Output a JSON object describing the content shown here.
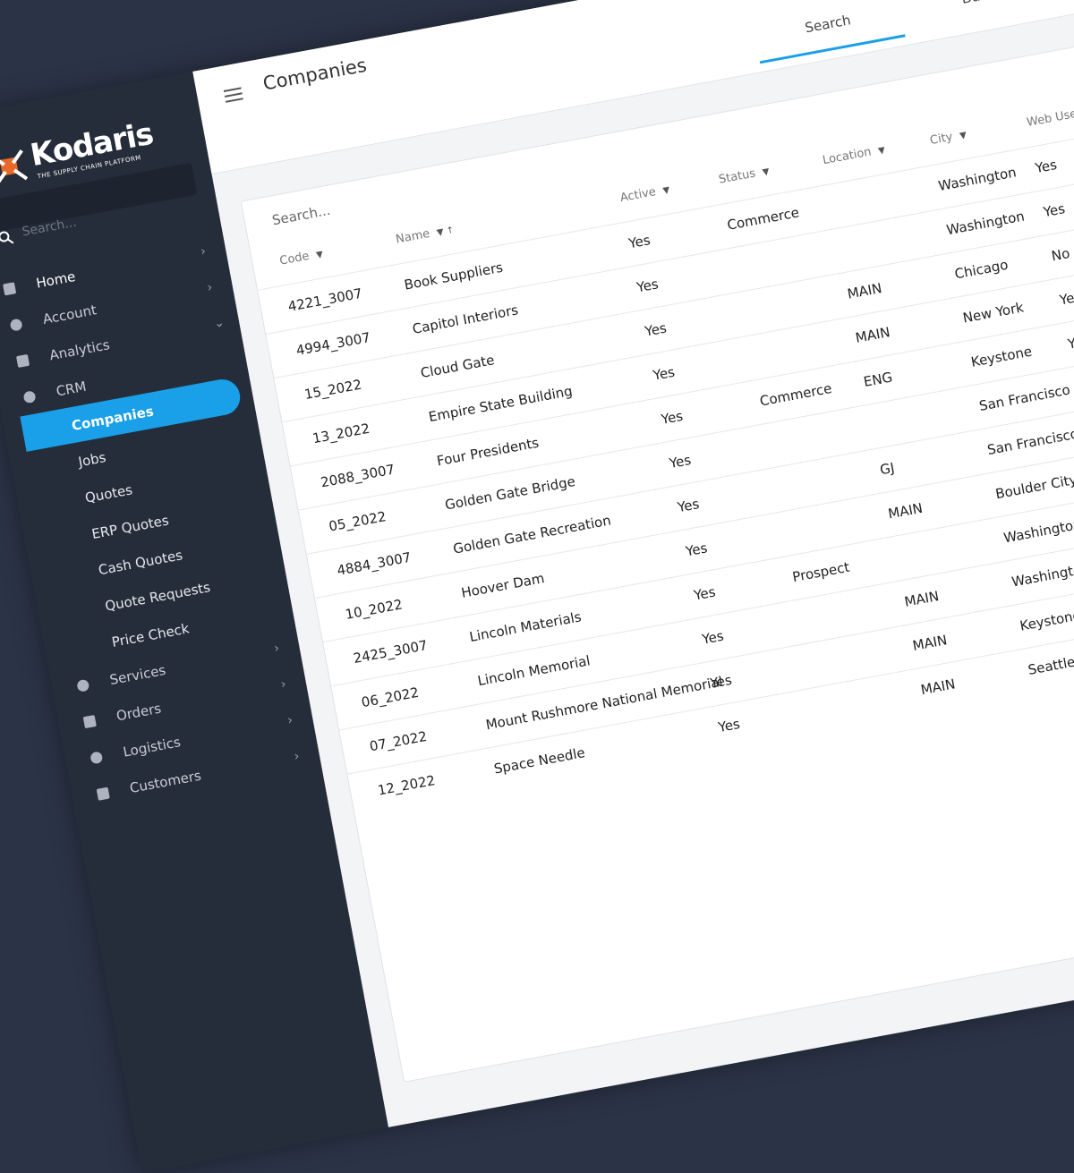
{
  "sidebar": {
    "logo": "Kodaris",
    "tagline": "THE SUPPLY CHAIN PLATFORM",
    "search": "Search...",
    "nav": [
      "Home",
      "Account",
      "Analytics",
      "CRM",
      "Companies",
      "Jobs",
      "Quotes",
      "ERP Quotes",
      "Cash Quotes",
      "Quote Requests",
      "Price Check",
      "Services",
      "Orders",
      "Logistics",
      "Customers"
    ]
  },
  "header": {
    "title": "Companies",
    "tabs": [
      "Search",
      "Data"
    ]
  },
  "table": {
    "search": "Search...",
    "columns": [
      "Code",
      "Name",
      "Active",
      "Status",
      "Location",
      "City",
      "Web User"
    ],
    "rows": [
      [
        "4221_3007",
        "Book Suppliers",
        "Yes",
        "Commerce",
        null,
        "Washington",
        "Yes"
      ],
      [
        "4994_3007",
        "Capitol Interiors",
        "Yes",
        null,
        null,
        "Washington",
        "Yes"
      ],
      [
        "15_2022",
        "Cloud Gate",
        "Yes",
        null,
        "MAIN",
        "Chicago",
        "No"
      ],
      [
        "13_2022",
        "Empire State Building",
        "Yes",
        null,
        "MAIN",
        "New York",
        "Yes"
      ],
      [
        "2088_3007",
        "Four Presidents",
        "Yes",
        "Commerce",
        "ENG",
        "Keystone",
        "Yes"
      ],
      [
        "05_2022",
        "Golden Gate Bridge",
        "Yes",
        null,
        null,
        "San Francisco",
        null
      ],
      [
        "4884_3007",
        "Golden Gate Recreation",
        "Yes",
        null,
        "GJ",
        "San Francisco",
        null
      ],
      [
        "10_2022",
        "Hoover Dam",
        "Yes",
        null,
        "MAIN",
        "Boulder City",
        null
      ],
      [
        "2425_3007",
        "Lincoln Materials",
        "Yes",
        "Prospect",
        null,
        "Washington",
        null
      ],
      [
        "06_2022",
        "Lincoln Memorial",
        "Yes",
        null,
        "MAIN",
        "Washington",
        null
      ],
      [
        "07_2022",
        "Mount Rushmore National Memorial",
        "Yes",
        null,
        "MAIN",
        "Keystone",
        null
      ],
      [
        "12_2022",
        "Space Needle",
        "Yes",
        null,
        "MAIN",
        "Seattle",
        null
      ]
    ]
  }
}
